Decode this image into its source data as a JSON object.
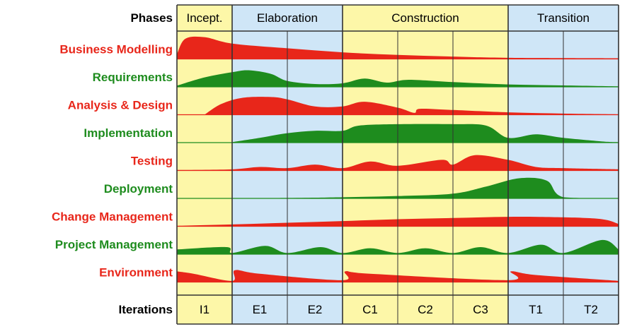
{
  "header": {
    "phases_label": "Phases",
    "iterations_label": "Iterations"
  },
  "colors": {
    "yellow": "#fdf7a8",
    "blue": "#cfe6f7",
    "grid": "#333333",
    "red": "#e8261a",
    "green": "#1e8c1e"
  },
  "phases": [
    {
      "name": "Incept.",
      "iterations": 1,
      "bg": "yellow"
    },
    {
      "name": "Elaboration",
      "iterations": 2,
      "bg": "blue"
    },
    {
      "name": "Construction",
      "iterations": 3,
      "bg": "yellow"
    },
    {
      "name": "Transition",
      "iterations": 2,
      "bg": "blue"
    }
  ],
  "iterations": [
    "I1",
    "E1",
    "E2",
    "C1",
    "C2",
    "C3",
    "T1",
    "T2"
  ],
  "disciplines": [
    {
      "name": "Business Modelling",
      "color": "red",
      "profile": [
        [
          0,
          0.2
        ],
        [
          0.15,
          0.85
        ],
        [
          0.5,
          0.92
        ],
        [
          1,
          0.65
        ],
        [
          2,
          0.45
        ],
        [
          3,
          0.28
        ],
        [
          4,
          0.17
        ],
        [
          5,
          0.1
        ],
        [
          6,
          0.05
        ],
        [
          8,
          0.03
        ]
      ]
    },
    {
      "name": "Requirements",
      "color": "green",
      "profile": [
        [
          0,
          0.05
        ],
        [
          0.5,
          0.4
        ],
        [
          1,
          0.62
        ],
        [
          1.3,
          0.7
        ],
        [
          1.7,
          0.55
        ],
        [
          2,
          0.25
        ],
        [
          2.5,
          0.12
        ],
        [
          3,
          0.15
        ],
        [
          3.4,
          0.35
        ],
        [
          3.8,
          0.18
        ],
        [
          4.2,
          0.3
        ],
        [
          5,
          0.2
        ],
        [
          6,
          0.1
        ],
        [
          7,
          0.06
        ],
        [
          8,
          0.02
        ]
      ]
    },
    {
      "name": "Analysis & Design",
      "color": "red",
      "profile": [
        [
          0.5,
          0
        ],
        [
          0.8,
          0.45
        ],
        [
          1.2,
          0.72
        ],
        [
          1.7,
          0.75
        ],
        [
          2,
          0.65
        ],
        [
          2.5,
          0.35
        ],
        [
          3,
          0.35
        ],
        [
          3.4,
          0.55
        ],
        [
          4,
          0.3
        ],
        [
          4.3,
          0.08
        ],
        [
          4.4,
          0.25
        ],
        [
          5,
          0.2
        ],
        [
          6,
          0.1
        ],
        [
          7,
          0.05
        ],
        [
          8,
          0.02
        ]
      ]
    },
    {
      "name": "Implementation",
      "color": "green",
      "profile": [
        [
          1,
          0.02
        ],
        [
          1.5,
          0.2
        ],
        [
          2,
          0.4
        ],
        [
          2.5,
          0.5
        ],
        [
          3,
          0.5
        ],
        [
          3.3,
          0.72
        ],
        [
          4,
          0.78
        ],
        [
          5,
          0.78
        ],
        [
          5.6,
          0.72
        ],
        [
          6,
          0.2
        ],
        [
          6.5,
          0.35
        ],
        [
          7,
          0.2
        ],
        [
          7.7,
          0.05
        ],
        [
          8,
          0.02
        ]
      ]
    },
    {
      "name": "Testing",
      "color": "red",
      "profile": [
        [
          0,
          0.02
        ],
        [
          1,
          0.05
        ],
        [
          1.5,
          0.15
        ],
        [
          2,
          0.1
        ],
        [
          2.5,
          0.25
        ],
        [
          3,
          0.1
        ],
        [
          3.5,
          0.38
        ],
        [
          4,
          0.2
        ],
        [
          4.8,
          0.45
        ],
        [
          5,
          0.25
        ],
        [
          5.4,
          0.65
        ],
        [
          6,
          0.45
        ],
        [
          6.5,
          0.15
        ],
        [
          7,
          0.1
        ],
        [
          8,
          0.05
        ]
      ]
    },
    {
      "name": "Deployment",
      "color": "green",
      "profile": [
        [
          0,
          0
        ],
        [
          2,
          0.02
        ],
        [
          3,
          0.05
        ],
        [
          4,
          0.1
        ],
        [
          5,
          0.2
        ],
        [
          5.6,
          0.5
        ],
        [
          6.2,
          0.85
        ],
        [
          6.7,
          0.75
        ],
        [
          7,
          0.05
        ],
        [
          8,
          0
        ]
      ]
    },
    {
      "name": "Change Management",
      "color": "red",
      "profile": [
        [
          0,
          0.02
        ],
        [
          1,
          0.08
        ],
        [
          2,
          0.15
        ],
        [
          3,
          0.22
        ],
        [
          4,
          0.3
        ],
        [
          5,
          0.35
        ],
        [
          6,
          0.4
        ],
        [
          7,
          0.38
        ],
        [
          7.7,
          0.3
        ],
        [
          8,
          0.1
        ]
      ]
    },
    {
      "name": "Project Management",
      "color": "green",
      "profile": [
        [
          0,
          0.2
        ],
        [
          0.9,
          0.3
        ],
        [
          1,
          0.05
        ],
        [
          1.6,
          0.35
        ],
        [
          2,
          0.05
        ],
        [
          2.6,
          0.3
        ],
        [
          3,
          0.05
        ],
        [
          3.5,
          0.25
        ],
        [
          4,
          0.05
        ],
        [
          4.5,
          0.25
        ],
        [
          5,
          0.05
        ],
        [
          5.5,
          0.3
        ],
        [
          6,
          0.05
        ],
        [
          6.6,
          0.4
        ],
        [
          7,
          0.05
        ],
        [
          7.7,
          0.6
        ],
        [
          8,
          0.2
        ]
      ]
    },
    {
      "name": "Environment",
      "color": "red",
      "profile": [
        [
          0,
          0.45
        ],
        [
          0.3,
          0.35
        ],
        [
          1,
          0.05
        ],
        [
          1.05,
          0.5
        ],
        [
          1.5,
          0.35
        ],
        [
          3,
          0.08
        ],
        [
          3.05,
          0.45
        ],
        [
          3.5,
          0.35
        ],
        [
          6,
          0.08
        ],
        [
          6.05,
          0.45
        ],
        [
          6.5,
          0.3
        ],
        [
          8,
          0.05
        ]
      ]
    }
  ]
}
